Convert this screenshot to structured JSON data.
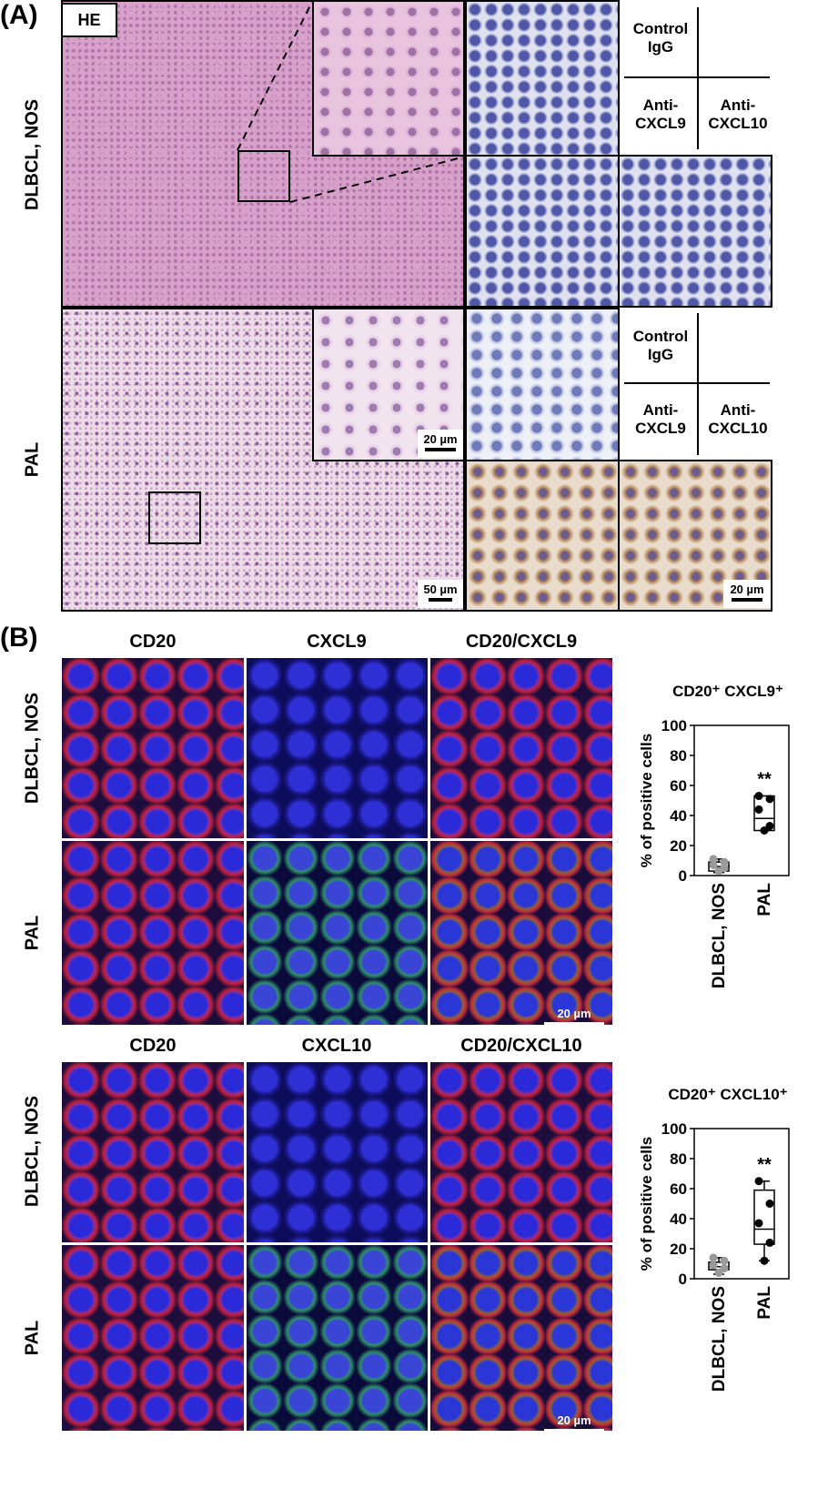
{
  "panelA": {
    "letter": "(A)",
    "he_tag": "HE",
    "rows": [
      "DLBCL, NOS",
      "PAL"
    ],
    "legend1": {
      "control": "Control IgG",
      "anti9": "Anti- CXCL9",
      "anti10": "Anti- CXCL10"
    },
    "legend2": {
      "control": "Control IgG",
      "anti9": "Anti- CXCL9",
      "anti10": "Anti- CXCL10"
    },
    "scale_zoom": "20 µm",
    "scale_overview": "50 µm",
    "scale_ihc": "20 µm"
  },
  "panelB": {
    "letter": "(B)",
    "cols1": [
      "CD20",
      "CXCL9",
      "CD20/CXCL9"
    ],
    "cols2": [
      "CD20",
      "CXCL10",
      "CD20/CXCL10"
    ],
    "rows": [
      "DLBCL, NOS",
      "PAL"
    ],
    "scale1": "20 µm",
    "scale2": "20 µm"
  },
  "chart_data": [
    {
      "type": "box",
      "title": "CD20⁺ CXCL9⁺",
      "ylabel": "% of positive cells",
      "categories": [
        "DLBCL, NOS",
        "PAL"
      ],
      "ylim": [
        0,
        100
      ],
      "yticks": [
        0,
        20,
        40,
        60,
        80,
        100
      ],
      "boxes": [
        {
          "min": 2,
          "q1": 3,
          "median": 6,
          "q3": 9,
          "max": 11,
          "points": [
            3,
            5,
            7,
            9,
            11
          ]
        },
        {
          "min": 30,
          "q1": 30,
          "median": 38,
          "q3": 53,
          "max": 53,
          "points": [
            30,
            33,
            44,
            51,
            53
          ]
        }
      ],
      "significance": "**"
    },
    {
      "type": "box",
      "title": "CD20⁺ CXCL10⁺",
      "ylabel": "% of  positive cells",
      "categories": [
        "DLBCL, NOS",
        "PAL"
      ],
      "ylim": [
        0,
        100
      ],
      "yticks": [
        0,
        20,
        40,
        60,
        80,
        100
      ],
      "boxes": [
        {
          "min": 3,
          "q1": 6,
          "median": 8,
          "q3": 11,
          "max": 14,
          "points": [
            4,
            7,
            9,
            12,
            14
          ]
        },
        {
          "min": 12,
          "q1": 23,
          "median": 33,
          "q3": 59,
          "max": 65,
          "points": [
            12,
            24,
            37,
            50,
            65
          ]
        }
      ],
      "significance": "**"
    }
  ]
}
